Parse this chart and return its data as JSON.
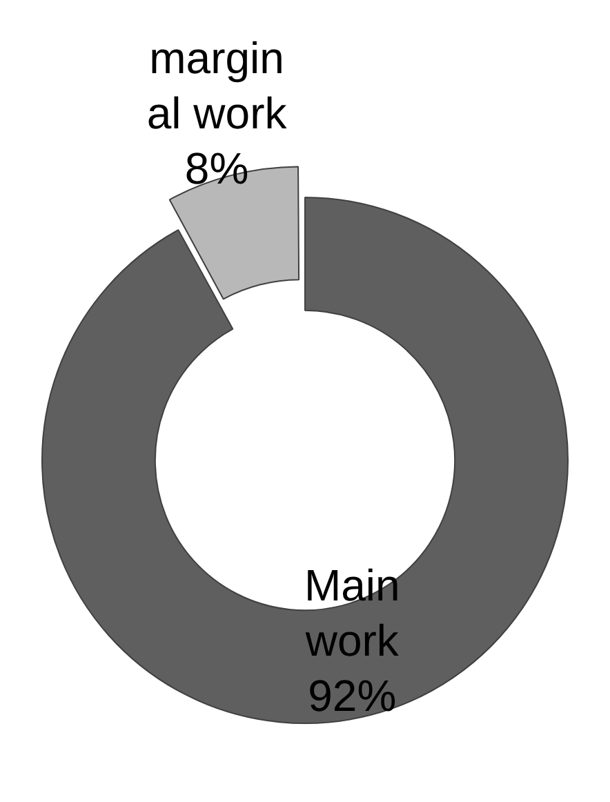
{
  "chart_data": {
    "type": "donut",
    "categories": [
      "Main work",
      "marginal work"
    ],
    "values": [
      92,
      8
    ],
    "colors": [
      "#5f5f5f",
      "#b8b8b8"
    ],
    "value_labels": [
      "92%",
      "8%"
    ],
    "legend": false
  }
}
